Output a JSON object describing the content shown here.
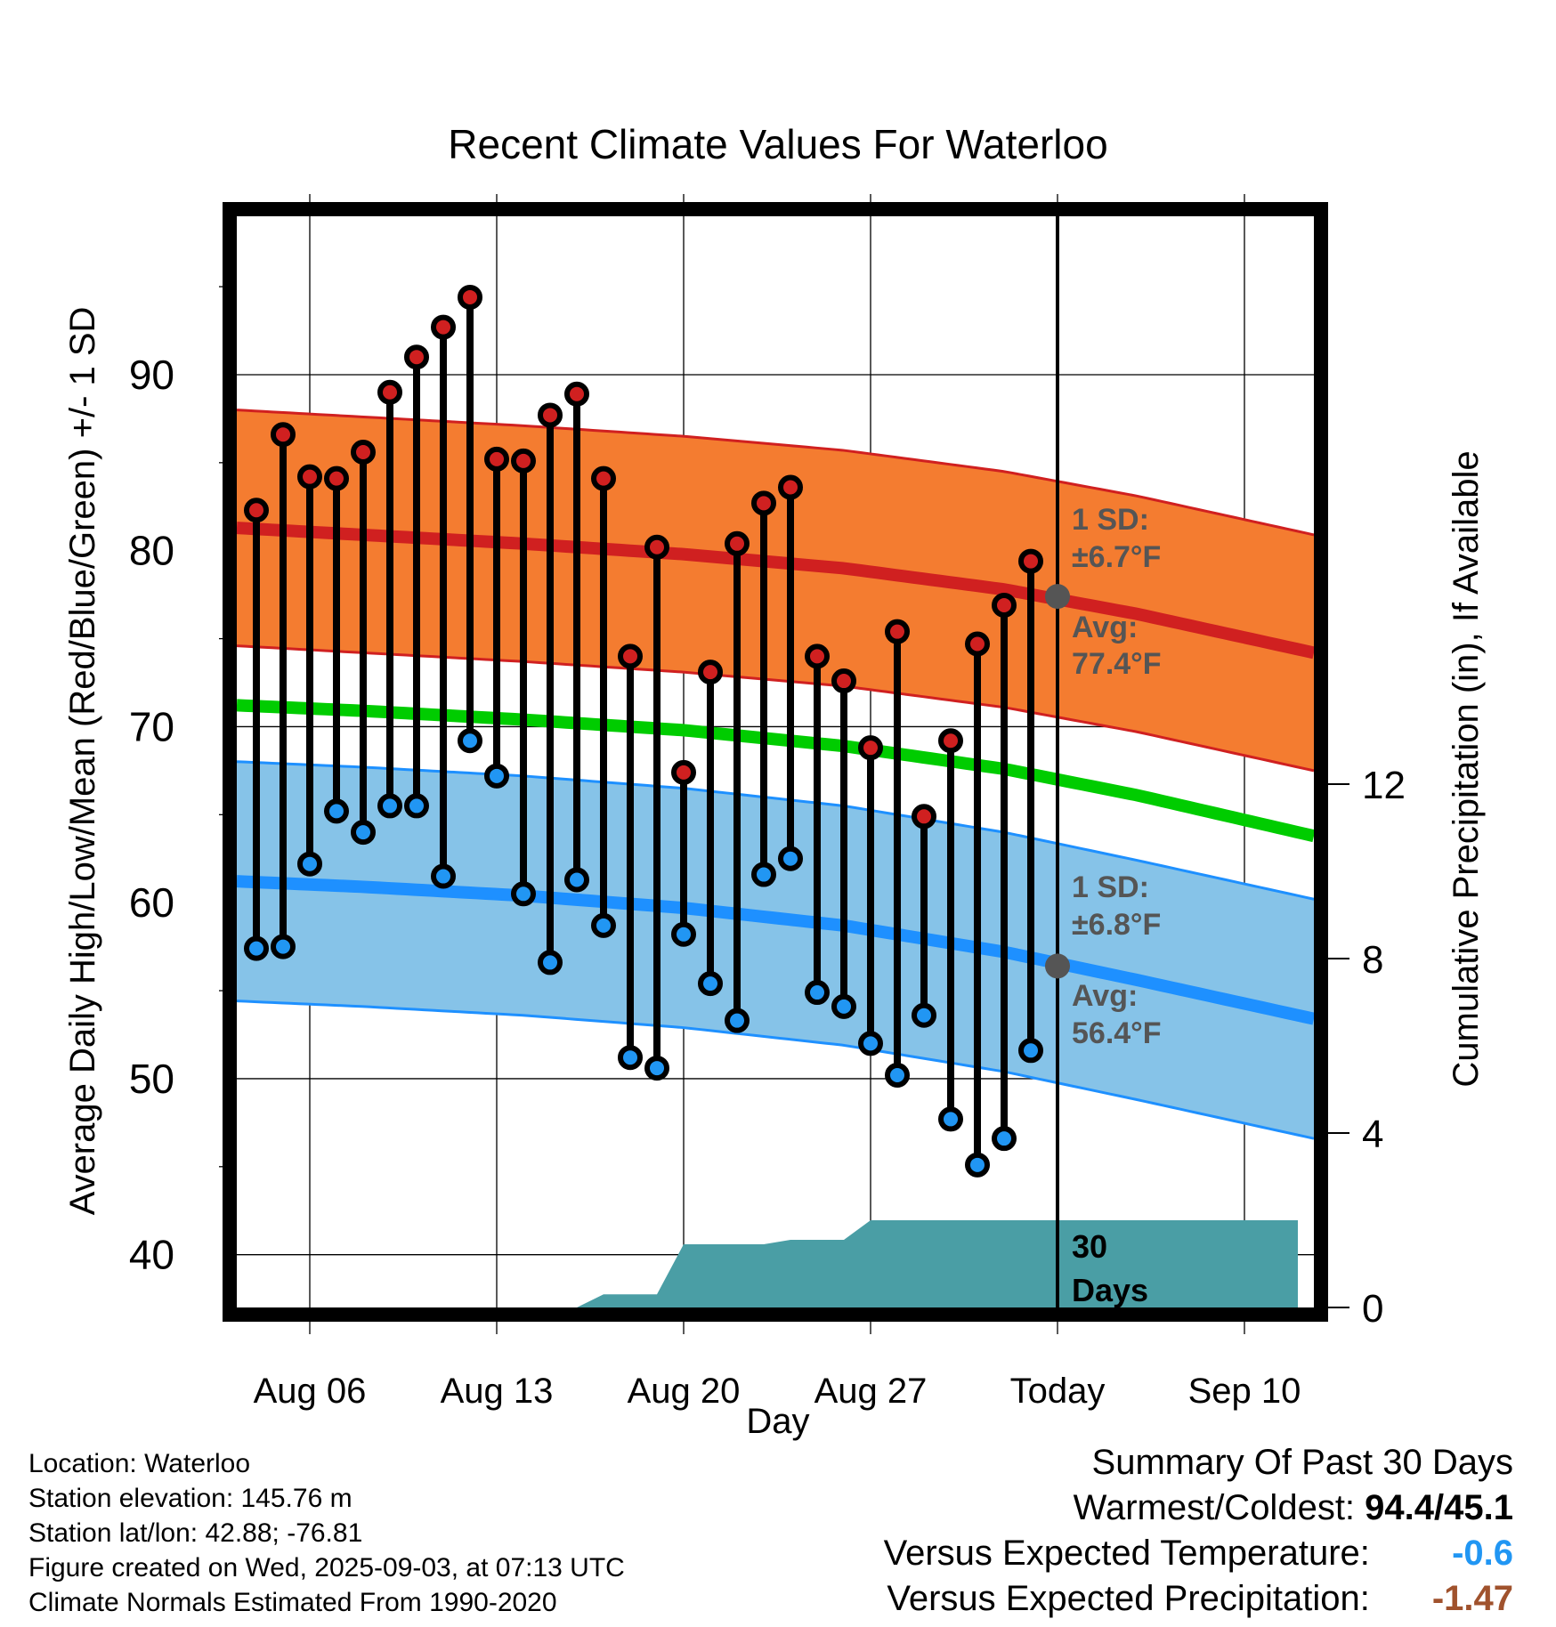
{
  "chart_data": {
    "type": "line",
    "title": "Recent Climate Values For Waterloo",
    "xlabel": "Day",
    "ylabel": "Average Daily High/Low/Mean (Red/Blue/Green) +/- 1 SD",
    "y2label": "Cumulative Precipitation (in), If Available",
    "ylim": [
      37,
      99
    ],
    "y2lim": [
      0,
      30
    ],
    "yticks": [
      "40",
      "50",
      "60",
      "70",
      "80",
      "90"
    ],
    "y2ticks": [
      "0",
      "4",
      "8",
      "12"
    ],
    "x_range": [
      "2025-08-02",
      "2025-09-12"
    ],
    "xticks": [
      {
        "date": "2025-08-06",
        "label": "Aug 06"
      },
      {
        "date": "2025-08-13",
        "label": "Aug 13"
      },
      {
        "date": "2025-08-20",
        "label": "Aug 20"
      },
      {
        "date": "2025-08-27",
        "label": "Aug 27"
      },
      {
        "date": "2025-09-03",
        "label": "Today"
      },
      {
        "date": "2025-09-10",
        "label": "Sep 10"
      }
    ],
    "grid": true,
    "today": "2025-09-03",
    "days": [
      "2025-08-04",
      "2025-08-05",
      "2025-08-06",
      "2025-08-07",
      "2025-08-08",
      "2025-08-09",
      "2025-08-10",
      "2025-08-11",
      "2025-08-12",
      "2025-08-13",
      "2025-08-14",
      "2025-08-15",
      "2025-08-16",
      "2025-08-17",
      "2025-08-18",
      "2025-08-19",
      "2025-08-20",
      "2025-08-21",
      "2025-08-22",
      "2025-08-23",
      "2025-08-24",
      "2025-08-25",
      "2025-08-26",
      "2025-08-27",
      "2025-08-28",
      "2025-08-29",
      "2025-08-30",
      "2025-08-31",
      "2025-09-01",
      "2025-09-02"
    ],
    "daily_high": [
      82.3,
      86.6,
      84.2,
      84.1,
      85.6,
      89.0,
      91.0,
      92.7,
      94.4,
      85.2,
      85.1,
      87.7,
      88.9,
      84.1,
      74.0,
      80.2,
      67.4,
      73.1,
      80.4,
      82.7,
      83.6,
      74.0,
      72.6,
      68.8,
      75.4,
      64.9,
      69.2,
      74.7,
      76.9,
      79.4
    ],
    "daily_low": [
      57.4,
      57.5,
      62.2,
      65.2,
      64.0,
      65.5,
      65.5,
      61.5,
      69.2,
      67.2,
      60.5,
      56.6,
      61.3,
      58.7,
      51.2,
      50.6,
      58.2,
      55.4,
      53.3,
      61.6,
      62.5,
      54.9,
      54.1,
      52.0,
      50.2,
      53.6,
      47.7,
      45.1,
      46.6,
      51.6
    ],
    "normal_x": [
      "2025-08-02",
      "2025-08-08",
      "2025-08-14",
      "2025-08-20",
      "2025-08-26",
      "2025-09-01",
      "2025-09-06",
      "2025-09-12"
    ],
    "normal_high": [
      81.4,
      80.9,
      80.4,
      79.8,
      79.0,
      77.8,
      76.4,
      74.4
    ],
    "normal_high_sd": 6.7,
    "normal_low": [
      61.3,
      60.9,
      60.4,
      59.7,
      58.7,
      57.2,
      55.6,
      53.6
    ],
    "normal_low_sd": 6.8,
    "normal_mean": [
      71.3,
      70.9,
      70.4,
      69.8,
      68.9,
      67.6,
      66.1,
      64.0
    ],
    "precip_cumulative": [
      {
        "date": "2025-08-16",
        "value": 0.0
      },
      {
        "date": "2025-08-17",
        "value": 0.3
      },
      {
        "date": "2025-08-19",
        "value": 0.3
      },
      {
        "date": "2025-08-20",
        "value": 1.45
      },
      {
        "date": "2025-08-23",
        "value": 1.45
      },
      {
        "date": "2025-08-24",
        "value": 1.55
      },
      {
        "date": "2025-08-26",
        "value": 1.55
      },
      {
        "date": "2025-08-27",
        "value": 2.0
      },
      {
        "date": "2025-08-28",
        "value": 2.0
      },
      {
        "date": "2025-09-12",
        "value": 2.0
      }
    ],
    "annotations": {
      "high_sd_label": "1 SD:",
      "high_sd_value": "±6.7°F",
      "high_avg_label": "Avg:",
      "high_avg_value": "77.4°F",
      "low_sd_label": "1 SD:",
      "low_sd_value": "±6.8°F",
      "low_avg_label": "Avg:",
      "low_avg_value": "56.4°F",
      "period_line1": "30",
      "period_line2": "Days"
    },
    "today_high_avg": 77.4,
    "today_low_avg": 56.4,
    "colors": {
      "high_band": "#f47c30",
      "high_line": "#d02020",
      "low_band": "#86c3e8",
      "low_line": "#1e90ff",
      "mean_line": "#00cc00",
      "precip": "#4a9ea5",
      "high_dot": "#d02020",
      "low_dot": "#2196f3"
    }
  },
  "footer": {
    "location": "Location: Waterloo",
    "elevation": "Station elevation: 145.76 m",
    "latlon": "Station lat/lon: 42.88; -76.81",
    "created": "Figure created on Wed, 2025-09-03, at 07:13 UTC",
    "normals": "Climate Normals Estimated From 1990-2020"
  },
  "summary": {
    "title": "Summary Of Past 30 Days",
    "warmest_label": "Warmest/Coldest:",
    "warmest_value": "94.4/45.1",
    "temp_label": "Versus Expected Temperature:",
    "temp_value": "-0.6",
    "temp_color": "#2196f3",
    "precip_label": "Versus Expected Precipitation:",
    "precip_value": "-1.47",
    "precip_color": "#a0522d"
  }
}
